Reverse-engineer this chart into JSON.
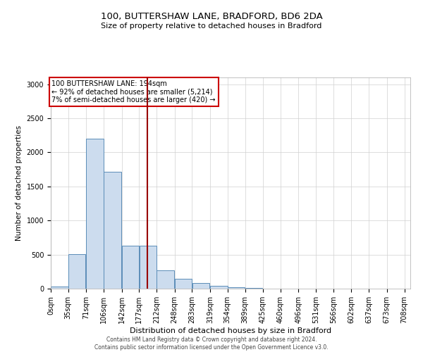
{
  "title_line1": "100, BUTTERSHAW LANE, BRADFORD, BD6 2DA",
  "title_line2": "Size of property relative to detached houses in Bradford",
  "xlabel": "Distribution of detached houses by size in Bradford",
  "ylabel": "Number of detached properties",
  "annotation_line1": "100 BUTTERSHAW LANE: 194sqm",
  "annotation_line2": "← 92% of detached houses are smaller (5,214)",
  "annotation_line3": "7% of semi-detached houses are larger (420) →",
  "property_size": 194,
  "bin_edges": [
    0,
    35,
    71,
    106,
    142,
    177,
    212,
    248,
    283,
    319,
    354,
    389,
    425,
    460,
    496,
    531,
    566,
    602,
    637,
    673,
    708
  ],
  "bar_heights": [
    30,
    510,
    2200,
    1720,
    630,
    630,
    270,
    140,
    80,
    40,
    20,
    10,
    5,
    5,
    5,
    3,
    3,
    2,
    2,
    1
  ],
  "bar_color": "#ccdcee",
  "bar_edge_color": "#5b8db8",
  "vline_color": "#990000",
  "annotation_box_edge_color": "#cc0000",
  "annotation_box_bg": "#ffffff",
  "grid_color": "#d0d0d0",
  "footer_line1": "Contains HM Land Registry data © Crown copyright and database right 2024.",
  "footer_line2": "Contains public sector information licensed under the Open Government Licence v3.0.",
  "ylim": [
    0,
    3100
  ],
  "xlim": [
    0,
    720
  ],
  "yticks": [
    0,
    500,
    1000,
    1500,
    2000,
    2500,
    3000
  ],
  "title1_fontsize": 9.5,
  "title2_fontsize": 8,
  "tick_fontsize": 7,
  "ylabel_fontsize": 7.5,
  "xlabel_fontsize": 8,
  "annot_fontsize": 7,
  "footer_fontsize": 5.5
}
